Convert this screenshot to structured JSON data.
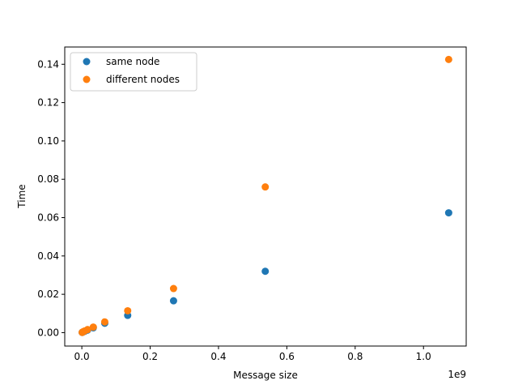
{
  "chart_data": {
    "type": "scatter",
    "title": "",
    "xlabel": "Message size",
    "ylabel": "Time",
    "x_offset_label": "1e9",
    "x_scale": 1000000000,
    "xlim": [
      -50000000,
      1125000000
    ],
    "ylim": [
      -0.007,
      0.149
    ],
    "xticks": [
      0,
      200000000,
      400000000,
      600000000,
      800000000,
      1000000000
    ],
    "xtick_labels": [
      "0.0",
      "0.2",
      "0.4",
      "0.6",
      "0.8",
      "1.0"
    ],
    "yticks": [
      0.0,
      0.02,
      0.04,
      0.06,
      0.08,
      0.1,
      0.12,
      0.14
    ],
    "ytick_labels": [
      "0.00",
      "0.02",
      "0.04",
      "0.06",
      "0.08",
      "0.10",
      "0.12",
      "0.14"
    ],
    "grid": false,
    "legend_position": "top-left",
    "series": [
      {
        "name": "same node",
        "color": "#1f77b4",
        "x": [
          1048576,
          2097152,
          4194304,
          8388608,
          16777216,
          33554432,
          67108864,
          134217728,
          268435456,
          536870912,
          1073741824
        ],
        "y": [
          0.0001,
          0.0002,
          0.0004,
          0.0007,
          0.0013,
          0.0025,
          0.0049,
          0.009,
          0.0166,
          0.032,
          0.0625
        ]
      },
      {
        "name": "different nodes",
        "color": "#ff7f0e",
        "x": [
          1048576,
          2097152,
          4194304,
          8388608,
          16777216,
          33554432,
          67108864,
          134217728,
          268435456,
          536870912,
          1073741824
        ],
        "y": [
          0.0001,
          0.0003,
          0.0005,
          0.0009,
          0.0016,
          0.0029,
          0.0056,
          0.0114,
          0.023,
          0.076,
          0.1425
        ]
      }
    ]
  }
}
